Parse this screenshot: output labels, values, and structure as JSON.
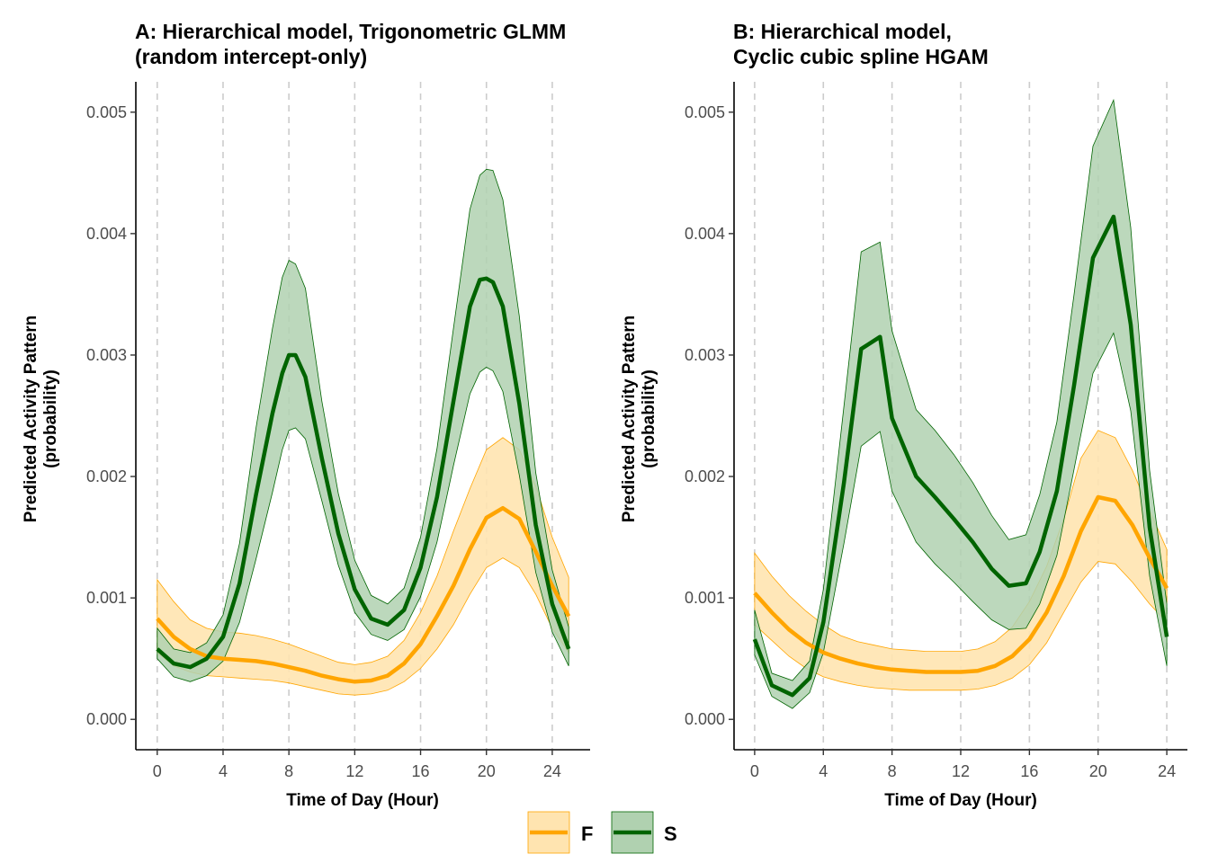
{
  "colors": {
    "F": "#FFA500",
    "S": "#006400",
    "F_fill": "#FFE4B0",
    "S_fill": "#B0D1B0"
  },
  "legend": [
    {
      "key": "F",
      "label": "F"
    },
    {
      "key": "S",
      "label": "S"
    }
  ],
  "chart_data": [
    {
      "type": "line",
      "title_lines": [
        "A: Hierarchical model, Trigonometric GLMM",
        "(random intercept-only)"
      ],
      "xlabel": "Time of Day (Hour)",
      "ylabel_lines": [
        "Predicted Activity Pattern",
        "(probability)"
      ],
      "xlim": [
        -1.3,
        26.3
      ],
      "ylim": [
        -0.00025,
        0.00525
      ],
      "xticks": [
        0,
        4,
        8,
        12,
        16,
        20,
        24
      ],
      "yticks": [
        0,
        0.001,
        0.002,
        0.003,
        0.004,
        0.005
      ],
      "ytick_labels": [
        "0.000",
        "0.001",
        "0.002",
        "0.003",
        "0.004",
        "0.005"
      ],
      "vlines": [
        0,
        4,
        8,
        12,
        16,
        20,
        24
      ],
      "grid": false,
      "series": [
        {
          "name": "F",
          "x": [
            0,
            1,
            2,
            3,
            4,
            5,
            6,
            7,
            8,
            9,
            10,
            11,
            12,
            13,
            14,
            15,
            16,
            17,
            18,
            19,
            20,
            21,
            22,
            23,
            24,
            25
          ],
          "y": [
            0.00083,
            0.00068,
            0.00058,
            0.00052,
            0.0005,
            0.00049,
            0.00048,
            0.00046,
            0.00043,
            0.0004,
            0.00036,
            0.00033,
            0.00031,
            0.00032,
            0.00036,
            0.00046,
            0.00062,
            0.00085,
            0.0011,
            0.0014,
            0.00166,
            0.00174,
            0.00165,
            0.00138,
            0.0011,
            0.00085
          ],
          "lower": [
            0.00055,
            0.00044,
            0.00039,
            0.00036,
            0.00035,
            0.00034,
            0.00033,
            0.00032,
            0.0003,
            0.00027,
            0.00024,
            0.00021,
            0.0002,
            0.00021,
            0.00024,
            0.00031,
            0.00042,
            0.00058,
            0.00078,
            0.00103,
            0.00125,
            0.00133,
            0.00125,
            0.00103,
            0.00075,
            0.00055
          ],
          "upper": [
            0.00115,
            0.00097,
            0.00082,
            0.00075,
            0.00072,
            0.00071,
            0.00069,
            0.00066,
            0.00062,
            0.00057,
            0.00052,
            0.00047,
            0.00045,
            0.00047,
            0.00052,
            0.00065,
            0.00088,
            0.00118,
            0.00155,
            0.0019,
            0.00222,
            0.00232,
            0.00222,
            0.00192,
            0.0015,
            0.00117
          ]
        },
        {
          "name": "S",
          "x": [
            0,
            1,
            2,
            3,
            4,
            5,
            6,
            7,
            7.6,
            8,
            8.4,
            9,
            10,
            11,
            12,
            13,
            14,
            15,
            16,
            17,
            18,
            19,
            19.6,
            20,
            20.4,
            21,
            22,
            23,
            24,
            25
          ],
          "y": [
            0.00058,
            0.00046,
            0.00043,
            0.0005,
            0.00068,
            0.00112,
            0.00185,
            0.00252,
            0.00285,
            0.003,
            0.003,
            0.00282,
            0.00215,
            0.00153,
            0.00107,
            0.00083,
            0.00078,
            0.0009,
            0.00125,
            0.00183,
            0.00262,
            0.0034,
            0.00362,
            0.00363,
            0.0036,
            0.0034,
            0.0026,
            0.0016,
            0.00095,
            0.00058
          ],
          "lower": [
            0.0005,
            0.00035,
            0.00031,
            0.00036,
            0.00048,
            0.0008,
            0.00132,
            0.00187,
            0.00222,
            0.00238,
            0.0024,
            0.00231,
            0.0018,
            0.00127,
            0.00088,
            0.0007,
            0.00065,
            0.00074,
            0.00101,
            0.00146,
            0.00209,
            0.00268,
            0.00286,
            0.0029,
            0.00287,
            0.0027,
            0.00201,
            0.00121,
            0.00072,
            0.00044
          ],
          "upper": [
            0.00075,
            0.00058,
            0.00055,
            0.00063,
            0.00086,
            0.00145,
            0.0024,
            0.00322,
            0.00364,
            0.00378,
            0.00375,
            0.00355,
            0.00262,
            0.00186,
            0.00131,
            0.00102,
            0.00095,
            0.00108,
            0.0015,
            0.00223,
            0.00322,
            0.0042,
            0.00448,
            0.00453,
            0.00452,
            0.00428,
            0.00332,
            0.00203,
            0.00123,
            0.00076
          ]
        }
      ]
    },
    {
      "type": "line",
      "title_lines": [
        "B: Hierarchical model,",
        "Cyclic cubic spline HGAM"
      ],
      "xlabel": "Time of Day (Hour)",
      "ylabel_lines": [
        "Predicted Activity Pattern",
        "(probability)"
      ],
      "xlim": [
        -1.2,
        25.2
      ],
      "ylim": [
        -0.00025,
        0.00525
      ],
      "xticks": [
        0,
        4,
        8,
        12,
        16,
        20,
        24
      ],
      "yticks": [
        0,
        0.001,
        0.002,
        0.003,
        0.004,
        0.005
      ],
      "ytick_labels": [
        "0.000",
        "0.001",
        "0.002",
        "0.003",
        "0.004",
        "0.005"
      ],
      "vlines": [
        0,
        4,
        8,
        12,
        16,
        20,
        24
      ],
      "grid": false,
      "series": [
        {
          "name": "F",
          "x": [
            0,
            1,
            2,
            3,
            4,
            5,
            6,
            7,
            8,
            9,
            10,
            11,
            12,
            13,
            14,
            15,
            16,
            17,
            18,
            19,
            20,
            21,
            22,
            23,
            24
          ],
          "y": [
            0.00104,
            0.00088,
            0.00074,
            0.00063,
            0.00055,
            0.0005,
            0.00046,
            0.00043,
            0.00041,
            0.0004,
            0.00039,
            0.00039,
            0.00039,
            0.0004,
            0.00044,
            0.00052,
            0.00066,
            0.00088,
            0.00118,
            0.00155,
            0.00183,
            0.0018,
            0.0016,
            0.00133,
            0.00108
          ],
          "lower": [
            0.00078,
            0.00065,
            0.00052,
            0.00042,
            0.00035,
            0.00031,
            0.00028,
            0.00026,
            0.00025,
            0.00024,
            0.00024,
            0.00024,
            0.00024,
            0.00025,
            0.00028,
            0.00034,
            0.00045,
            0.00063,
            0.00088,
            0.00113,
            0.0013,
            0.00128,
            0.00113,
            0.00095,
            0.0008
          ],
          "upper": [
            0.00137,
            0.00118,
            0.00102,
            0.00089,
            0.00078,
            0.00069,
            0.00064,
            0.00061,
            0.00058,
            0.00057,
            0.00056,
            0.00056,
            0.00056,
            0.00058,
            0.00064,
            0.00076,
            0.00097,
            0.00126,
            0.00165,
            0.00215,
            0.00238,
            0.00232,
            0.00205,
            0.00172,
            0.0014
          ]
        },
        {
          "name": "S",
          "x": [
            0,
            1,
            2.2,
            3.2,
            4,
            5.2,
            6.2,
            7.3,
            8,
            9.4,
            10.5,
            11.6,
            12.7,
            13.8,
            14.8,
            15.8,
            16.6,
            17.6,
            18.6,
            19.7,
            20.9,
            21.9,
            23,
            24
          ],
          "y": [
            0.00066,
            0.00028,
            0.0002,
            0.00034,
            0.0008,
            0.00195,
            0.00305,
            0.00315,
            0.00248,
            0.002,
            0.00183,
            0.00165,
            0.00146,
            0.00124,
            0.0011,
            0.00112,
            0.00138,
            0.00188,
            0.00275,
            0.0038,
            0.00414,
            0.00325,
            0.00158,
            0.00068
          ],
          "lower": [
            0.00053,
            0.00019,
            9e-05,
            0.00022,
            0.00055,
            0.00145,
            0.00225,
            0.00237,
            0.00188,
            0.00146,
            0.00128,
            0.00113,
            0.00097,
            0.00082,
            0.00074,
            0.00075,
            0.00095,
            0.00135,
            0.00206,
            0.00285,
            0.00318,
            0.00254,
            0.00118,
            0.00044
          ],
          "upper": [
            0.0009,
            0.00038,
            0.00032,
            0.00048,
            0.00107,
            0.00258,
            0.00385,
            0.00393,
            0.0032,
            0.00255,
            0.00238,
            0.00218,
            0.00195,
            0.00168,
            0.00148,
            0.00152,
            0.00185,
            0.00245,
            0.0035,
            0.00472,
            0.0051,
            0.00405,
            0.00205,
            0.00095
          ]
        }
      ]
    }
  ]
}
